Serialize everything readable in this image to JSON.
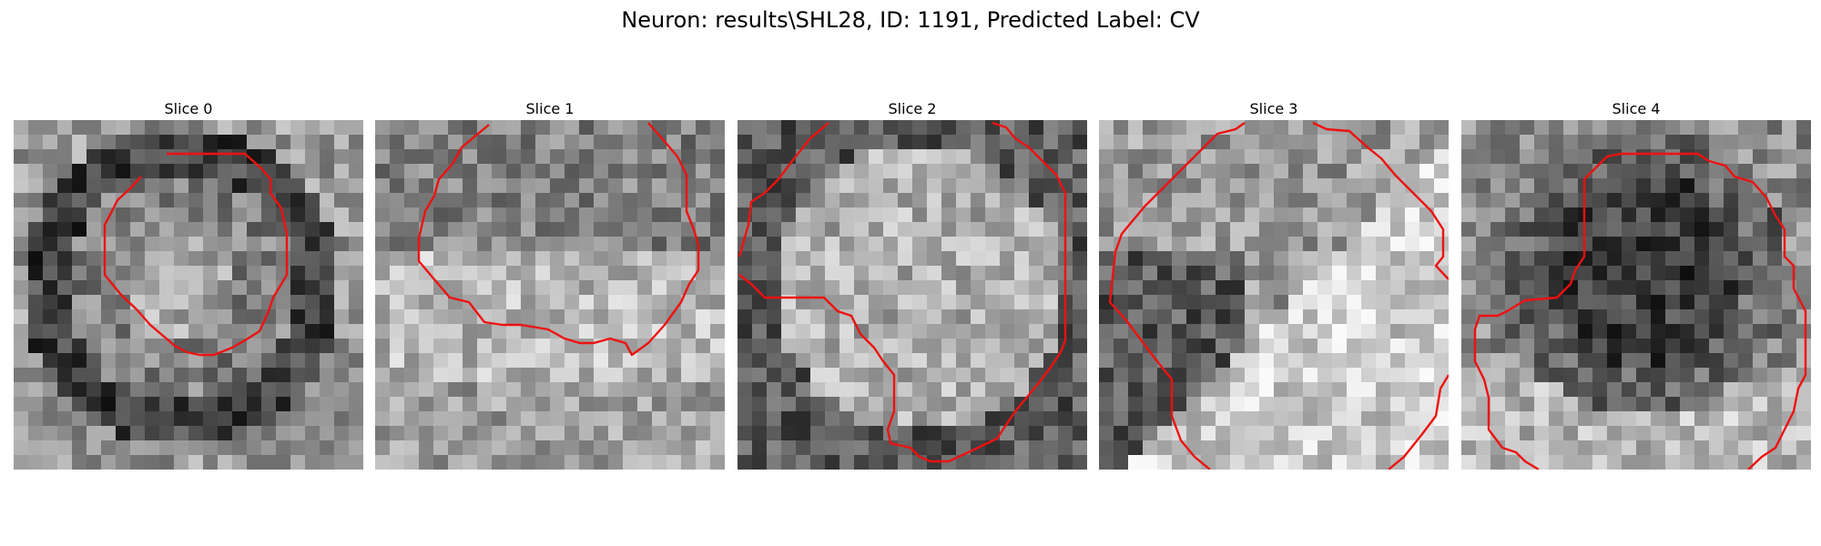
{
  "figure": {
    "title": "Neuron: results\\SHL28, ID: 1191, Predicted Label: CV"
  },
  "panels": [
    {
      "title": "Slice 0"
    },
    {
      "title": "Slice 1"
    },
    {
      "title": "Slice 2"
    },
    {
      "title": "Slice 3"
    },
    {
      "title": "Slice 4"
    }
  ],
  "colors": {
    "contour": "#ee1111",
    "background": "#ffffff"
  }
}
